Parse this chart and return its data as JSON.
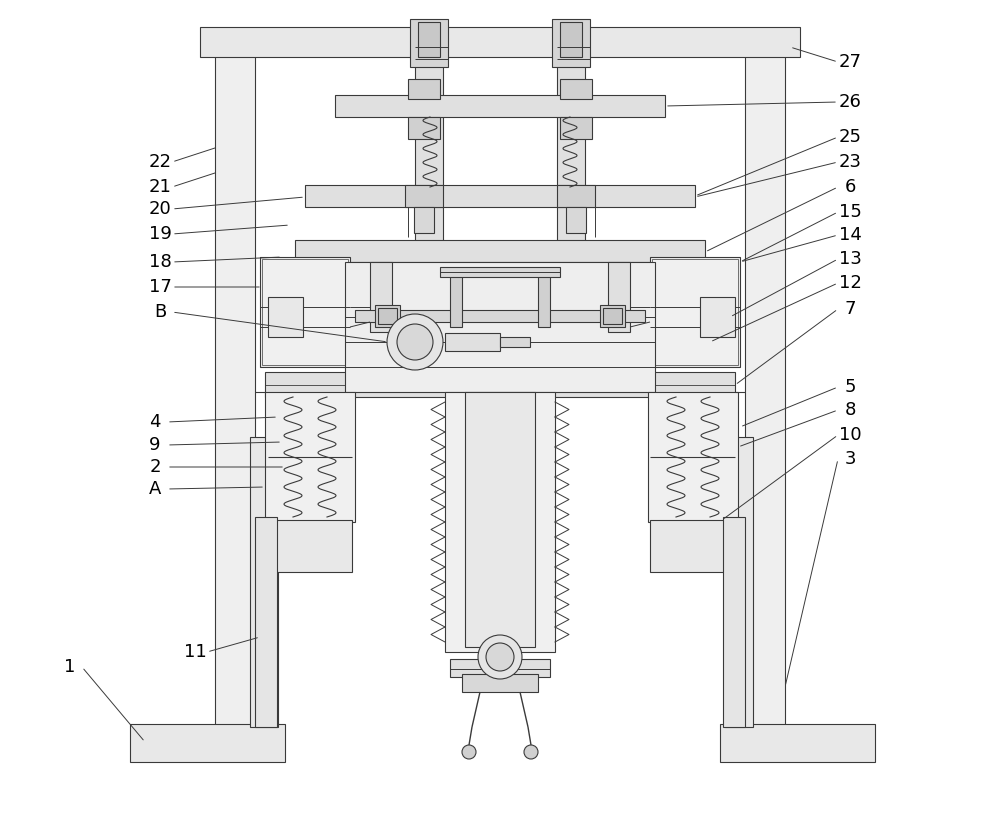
{
  "bg_color": "#ffffff",
  "line_color": "#3a3a3a",
  "line_width": 0.8,
  "fig_width": 10.0,
  "fig_height": 8.17,
  "dpi": 100
}
